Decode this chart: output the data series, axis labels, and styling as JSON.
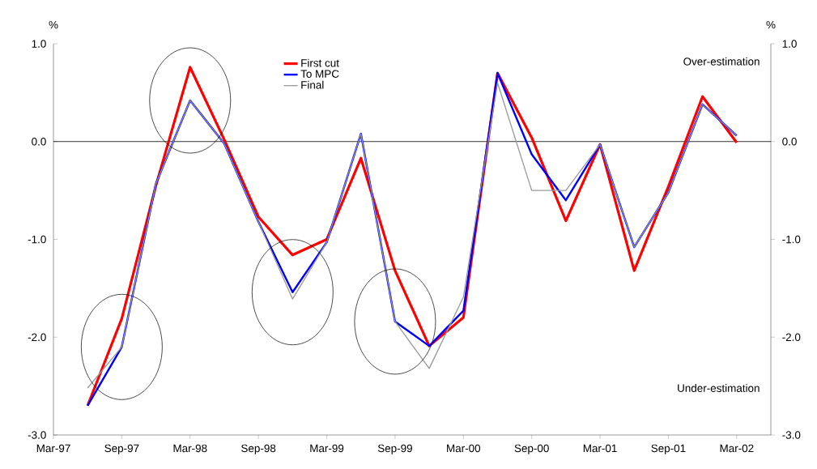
{
  "chart_data": {
    "type": "line",
    "x": [
      "1997-06",
      "1997-09",
      "1997-12",
      "1998-03",
      "1998-06",
      "1998-09",
      "1998-12",
      "1999-03",
      "1999-06",
      "1999-09",
      "1999-12",
      "2000-03",
      "2000-06",
      "2000-09",
      "2000-12",
      "2001-03",
      "2001-06",
      "2001-09",
      "2001-12",
      "2002-03"
    ],
    "series": [
      {
        "name": "First cut",
        "color": "#ff0000",
        "values": [
          -2.7,
          -1.81,
          -0.45,
          0.76,
          0.02,
          -0.77,
          -1.16,
          -1.0,
          -0.17,
          -1.32,
          -2.09,
          -1.8,
          0.7,
          0.04,
          -0.81,
          -0.03,
          -1.32,
          -0.46,
          0.46,
          -0.01
        ]
      },
      {
        "name": "To MPC",
        "color": "#0000ff",
        "values": [
          -2.7,
          -2.1,
          -0.43,
          0.42,
          -0.02,
          -0.82,
          -1.54,
          -1.03,
          0.08,
          -1.84,
          -2.09,
          -1.73,
          0.7,
          -0.13,
          -0.6,
          -0.03,
          -1.08,
          -0.52,
          0.38,
          0.06
        ]
      },
      {
        "name": "Final",
        "color": "#999999",
        "values": [
          -2.52,
          -2.1,
          -0.43,
          0.42,
          -0.02,
          -0.82,
          -1.61,
          -1.03,
          0.08,
          -1.84,
          -2.32,
          -1.59,
          0.6,
          -0.5,
          -0.5,
          -0.03,
          -1.08,
          -0.52,
          0.38,
          0.06
        ]
      }
    ],
    "xlim": [
      "1997-03",
      "2002-06"
    ],
    "xticks": [
      {
        "value": "1997-03",
        "label": "Mar-97"
      },
      {
        "value": "1997-09",
        "label": "Sep-97"
      },
      {
        "value": "1998-03",
        "label": "Mar-98"
      },
      {
        "value": "1998-09",
        "label": "Sep-98"
      },
      {
        "value": "1999-03",
        "label": "Mar-99"
      },
      {
        "value": "1999-09",
        "label": "Sep-99"
      },
      {
        "value": "2000-03",
        "label": "Mar-00"
      },
      {
        "value": "2000-09",
        "label": "Sep-00"
      },
      {
        "value": "2001-03",
        "label": "Mar-01"
      },
      {
        "value": "2001-09",
        "label": "Sep-01"
      },
      {
        "value": "2002-03",
        "label": "Mar-02"
      }
    ],
    "ylim": [
      -3,
      1
    ],
    "yticks": [
      {
        "value": -3,
        "label": "-3.0"
      },
      {
        "value": -2,
        "label": "-2.0"
      },
      {
        "value": -1,
        "label": "-1.0"
      },
      {
        "value": 0,
        "label": "0.0"
      },
      {
        "value": 1,
        "label": "1.0"
      }
    ],
    "y2lim": [
      -3,
      1
    ],
    "y2ticks": [
      {
        "value": -3,
        "label": "-3.0"
      },
      {
        "value": -2,
        "label": "-2.0"
      },
      {
        "value": -1,
        "label": "-1.0"
      },
      {
        "value": 0,
        "label": "0.0"
      },
      {
        "value": 1,
        "label": "1.0"
      }
    ],
    "ylabel": "%",
    "y2label": "%",
    "ref_lines": [
      {
        "axis": "y",
        "value": 0,
        "color": "#000000"
      }
    ],
    "annotations": [
      "Over-estimation",
      "Under-estimation"
    ],
    "legend": "top",
    "grid": false,
    "marker": "none",
    "line_style": "solid"
  }
}
